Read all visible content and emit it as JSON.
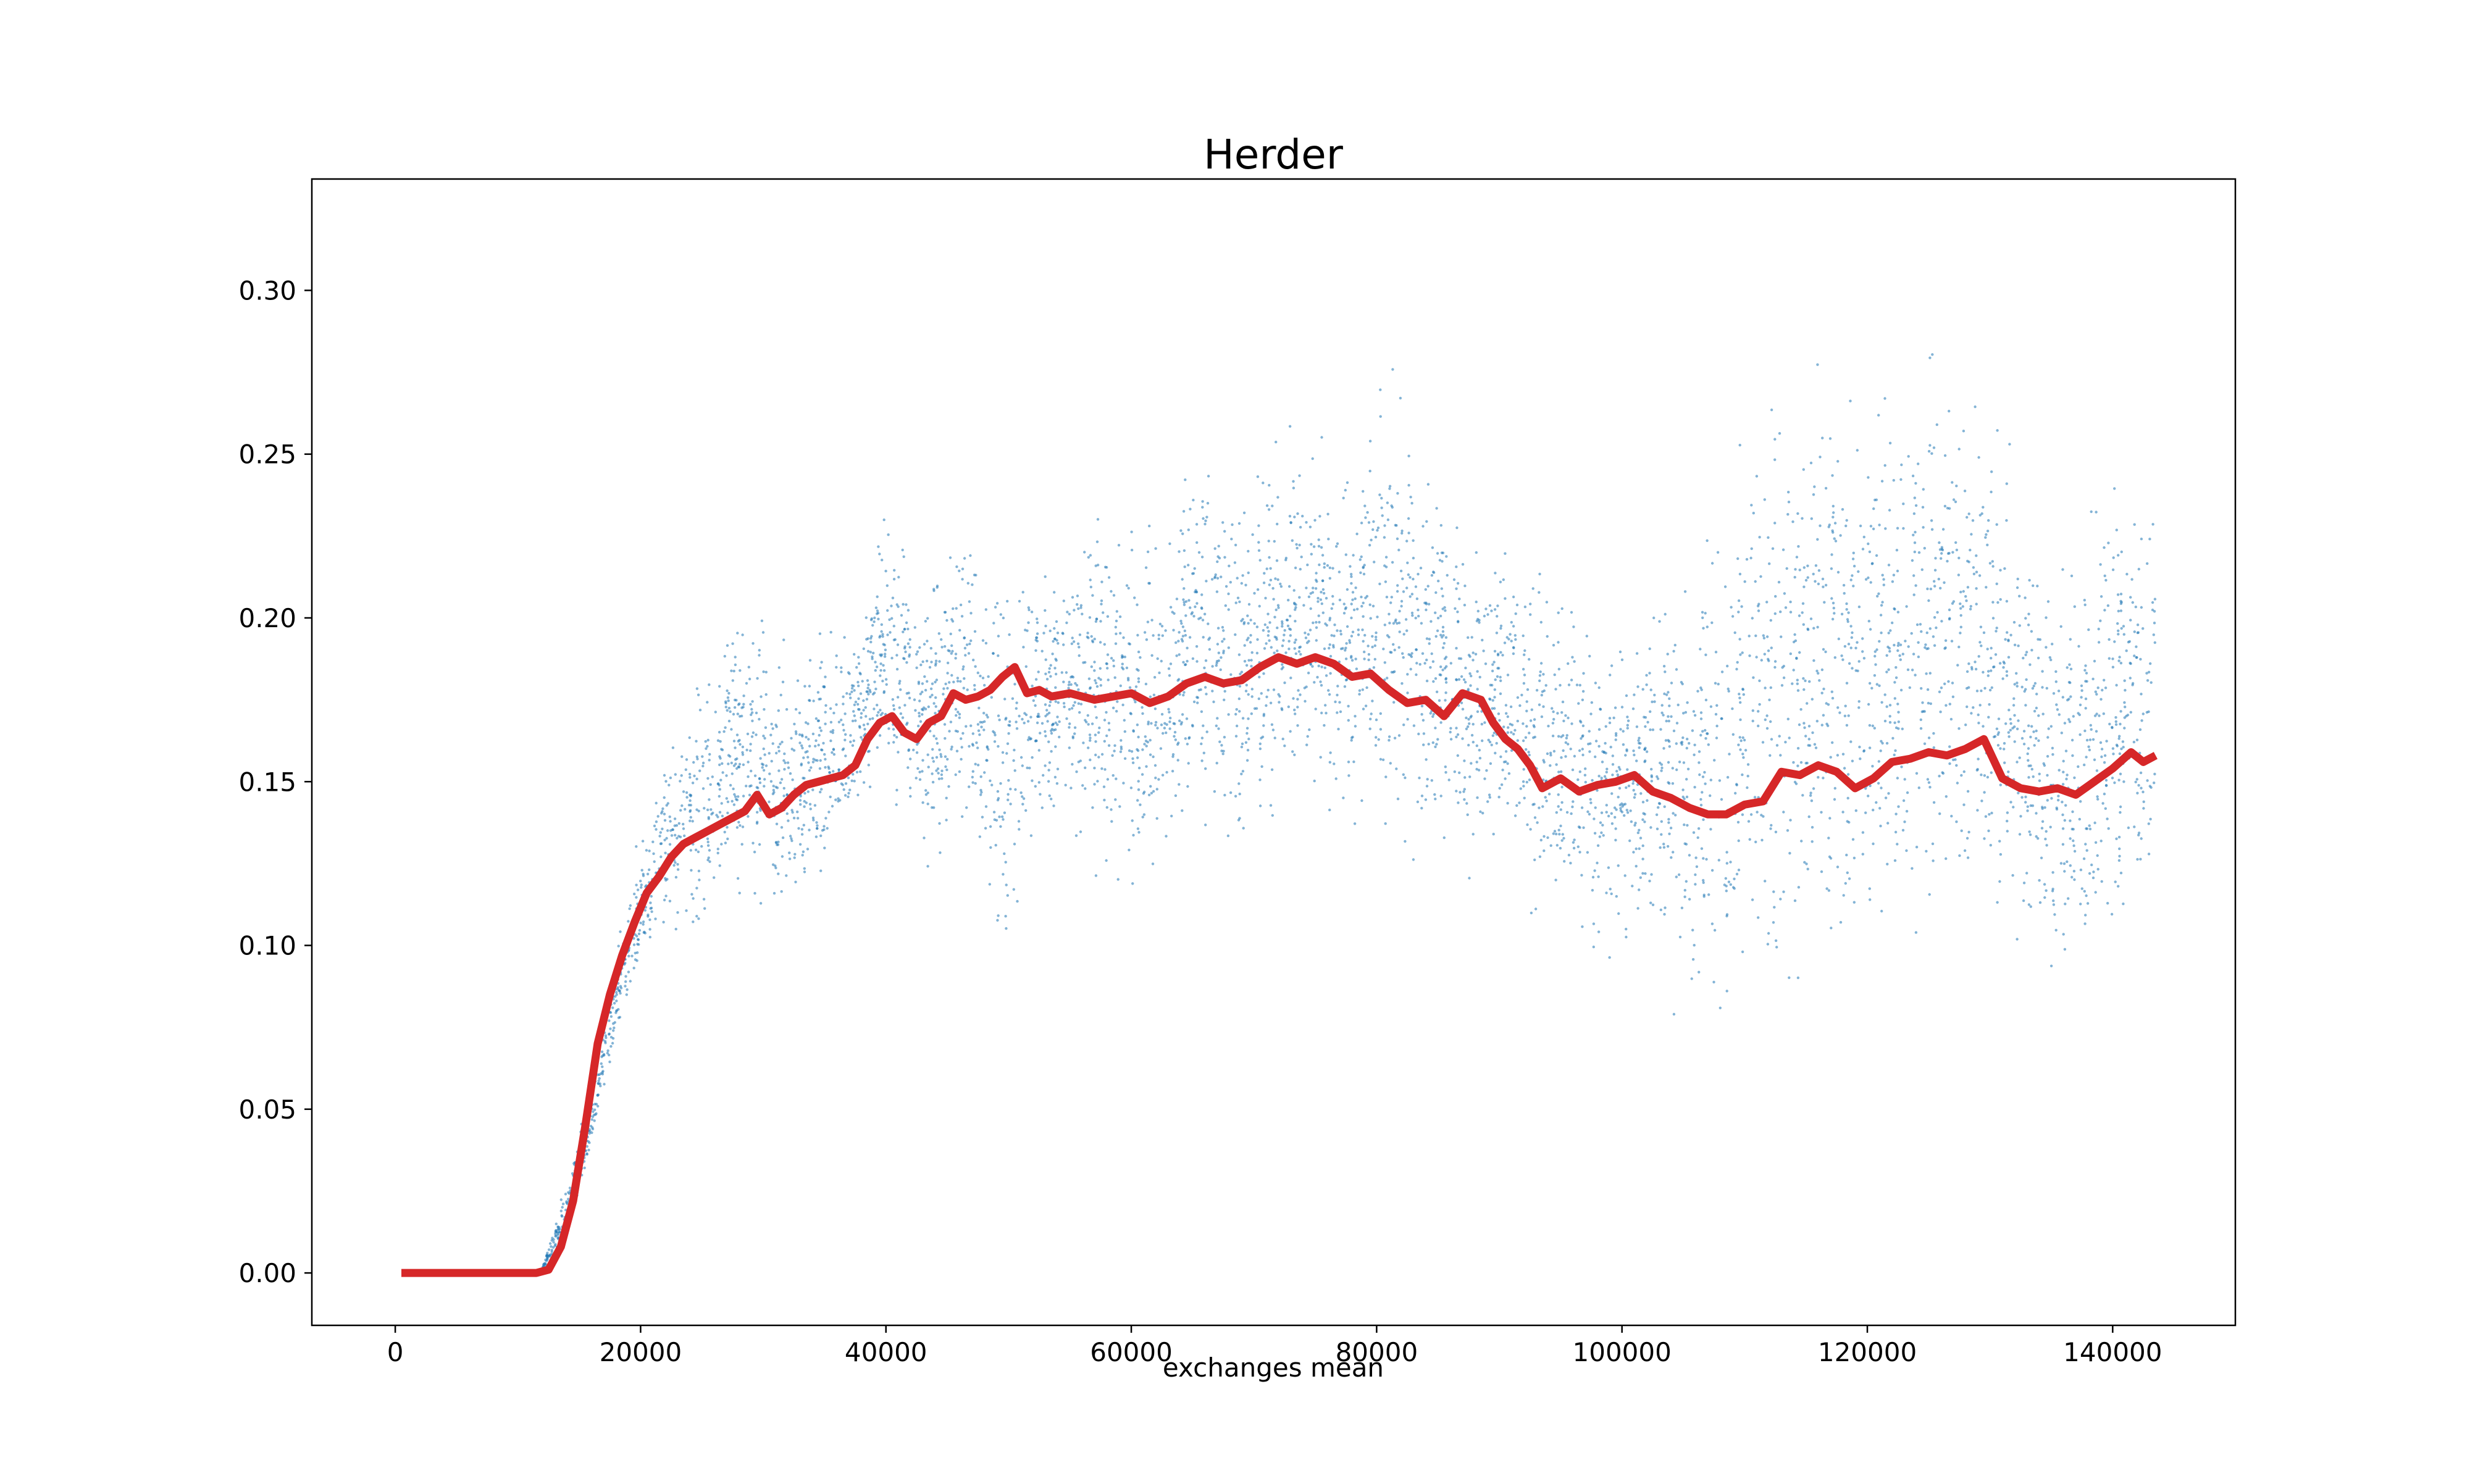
{
  "chart_data": {
    "type": "line",
    "title": "Herder",
    "xlabel": "exchanges mean",
    "ylabel": "",
    "xlim": [
      -6800,
      150000
    ],
    "ylim": [
      -0.016,
      0.334
    ],
    "x_ticks": [
      0,
      20000,
      40000,
      60000,
      80000,
      100000,
      120000,
      140000
    ],
    "x_tick_labels": [
      "0",
      "20000",
      "40000",
      "60000",
      "80000",
      "100000",
      "120000",
      "140000"
    ],
    "y_ticks": [
      0.0,
      0.05,
      0.1,
      0.15,
      0.2,
      0.25,
      0.3
    ],
    "y_tick_labels": [
      "0.00",
      "0.05",
      "0.10",
      "0.15",
      "0.20",
      "0.25",
      "0.30"
    ],
    "grid": false,
    "legend": "none",
    "colors": {
      "smoothed": "#d62728",
      "raw_points": "#1f77b4"
    },
    "series": [
      {
        "kind": "line",
        "x": [
          500,
          5000,
          10000,
          11500,
          12500,
          13500,
          14500,
          15500,
          16500,
          17500,
          18500,
          19500,
          20500,
          21500,
          22500,
          23500,
          24500,
          25500,
          26500,
          27500,
          28500,
          29500,
          30500,
          31500,
          32500,
          33500,
          34500,
          35500,
          36500,
          37500,
          38500,
          39500,
          40500,
          41500,
          42500,
          43500,
          44500,
          45500,
          46500,
          47500,
          48500,
          49500,
          50500,
          51500,
          52500,
          53500,
          55000,
          57000,
          58500,
          60000,
          61500,
          63000,
          64500,
          66000,
          67500,
          69000,
          70500,
          72000,
          73500,
          75000,
          76500,
          78000,
          79500,
          81000,
          82500,
          84000,
          85500,
          87000,
          88500,
          89500,
          90500,
          91500,
          92500,
          93500,
          95000,
          96500,
          98000,
          99500,
          101000,
          102500,
          104000,
          105500,
          107000,
          108500,
          110000,
          111500,
          113000,
          114500,
          116000,
          117500,
          119000,
          120500,
          122000,
          123500,
          125000,
          126500,
          128000,
          129500,
          131000,
          132500,
          134000,
          135500,
          137000,
          138500,
          140000,
          141500,
          142500,
          143500
        ],
        "y": [
          0.0,
          0.0,
          0.0,
          0.0,
          0.001,
          0.008,
          0.022,
          0.045,
          0.07,
          0.085,
          0.097,
          0.107,
          0.116,
          0.121,
          0.127,
          0.131,
          0.133,
          0.135,
          0.137,
          0.139,
          0.141,
          0.146,
          0.14,
          0.142,
          0.146,
          0.149,
          0.15,
          0.151,
          0.152,
          0.155,
          0.163,
          0.168,
          0.17,
          0.165,
          0.163,
          0.168,
          0.17,
          0.177,
          0.175,
          0.176,
          0.178,
          0.182,
          0.185,
          0.177,
          0.178,
          0.176,
          0.177,
          0.175,
          0.176,
          0.177,
          0.174,
          0.176,
          0.18,
          0.182,
          0.18,
          0.181,
          0.185,
          0.188,
          0.186,
          0.188,
          0.186,
          0.182,
          0.183,
          0.178,
          0.174,
          0.175,
          0.17,
          0.177,
          0.175,
          0.168,
          0.163,
          0.16,
          0.155,
          0.148,
          0.151,
          0.147,
          0.149,
          0.15,
          0.152,
          0.147,
          0.145,
          0.142,
          0.14,
          0.14,
          0.143,
          0.144,
          0.153,
          0.152,
          0.155,
          0.153,
          0.148,
          0.151,
          0.156,
          0.157,
          0.159,
          0.158,
          0.16,
          0.163,
          0.151,
          0.148,
          0.147,
          0.148,
          0.146,
          0.15,
          0.154,
          0.159,
          0.156,
          0.158
        ]
      },
      {
        "kind": "scatter",
        "band_x": [
          12000,
          14000,
          16000,
          18000,
          20000,
          22000,
          24000,
          26000,
          28000,
          30000,
          32000,
          34000,
          36000,
          38000,
          40000,
          42000,
          44000,
          46000,
          48000,
          50000,
          52000,
          54000,
          56000,
          58000,
          60000,
          62000,
          64000,
          66000,
          68000,
          70000,
          72000,
          74000,
          76000,
          78000,
          80000,
          82000,
          84000,
          86000,
          88000,
          90000,
          92000,
          94000,
          96000,
          98000,
          100000,
          102000,
          104000,
          106000,
          108000,
          110000,
          112000,
          114000,
          116000,
          118000,
          120000,
          122000,
          124000,
          126000,
          128000,
          130000,
          132000,
          134000,
          136000,
          138000,
          140000,
          142000,
          143500
        ],
        "band_low": [
          0.0,
          0.01,
          0.035,
          0.065,
          0.085,
          0.095,
          0.095,
          0.1,
          0.105,
          0.095,
          0.1,
          0.105,
          0.12,
          0.13,
          0.14,
          0.12,
          0.11,
          0.125,
          0.1,
          0.08,
          0.12,
          0.13,
          0.12,
          0.115,
          0.1,
          0.11,
          0.12,
          0.13,
          0.12,
          0.115,
          0.13,
          0.14,
          0.13,
          0.125,
          0.13,
          0.12,
          0.11,
          0.12,
          0.115,
          0.12,
          0.105,
          0.095,
          0.09,
          0.085,
          0.09,
          0.085,
          0.075,
          0.07,
          0.06,
          0.055,
          0.06,
          0.065,
          0.075,
          0.07,
          0.08,
          0.085,
          0.09,
          0.095,
          0.1,
          0.09,
          0.08,
          0.08,
          0.06,
          0.065,
          0.085,
          0.09,
          0.095
        ],
        "band_high": [
          0.002,
          0.03,
          0.06,
          0.1,
          0.14,
          0.165,
          0.18,
          0.2,
          0.215,
          0.22,
          0.19,
          0.2,
          0.205,
          0.21,
          0.245,
          0.23,
          0.225,
          0.235,
          0.225,
          0.23,
          0.23,
          0.225,
          0.235,
          0.24,
          0.24,
          0.245,
          0.26,
          0.265,
          0.25,
          0.26,
          0.27,
          0.265,
          0.255,
          0.25,
          0.28,
          0.29,
          0.26,
          0.245,
          0.23,
          0.235,
          0.23,
          0.225,
          0.215,
          0.21,
          0.215,
          0.22,
          0.225,
          0.23,
          0.24,
          0.27,
          0.305,
          0.31,
          0.305,
          0.3,
          0.28,
          0.29,
          0.3,
          0.3,
          0.295,
          0.28,
          0.26,
          0.24,
          0.245,
          0.25,
          0.255,
          0.26,
          0.26
        ]
      }
    ]
  }
}
